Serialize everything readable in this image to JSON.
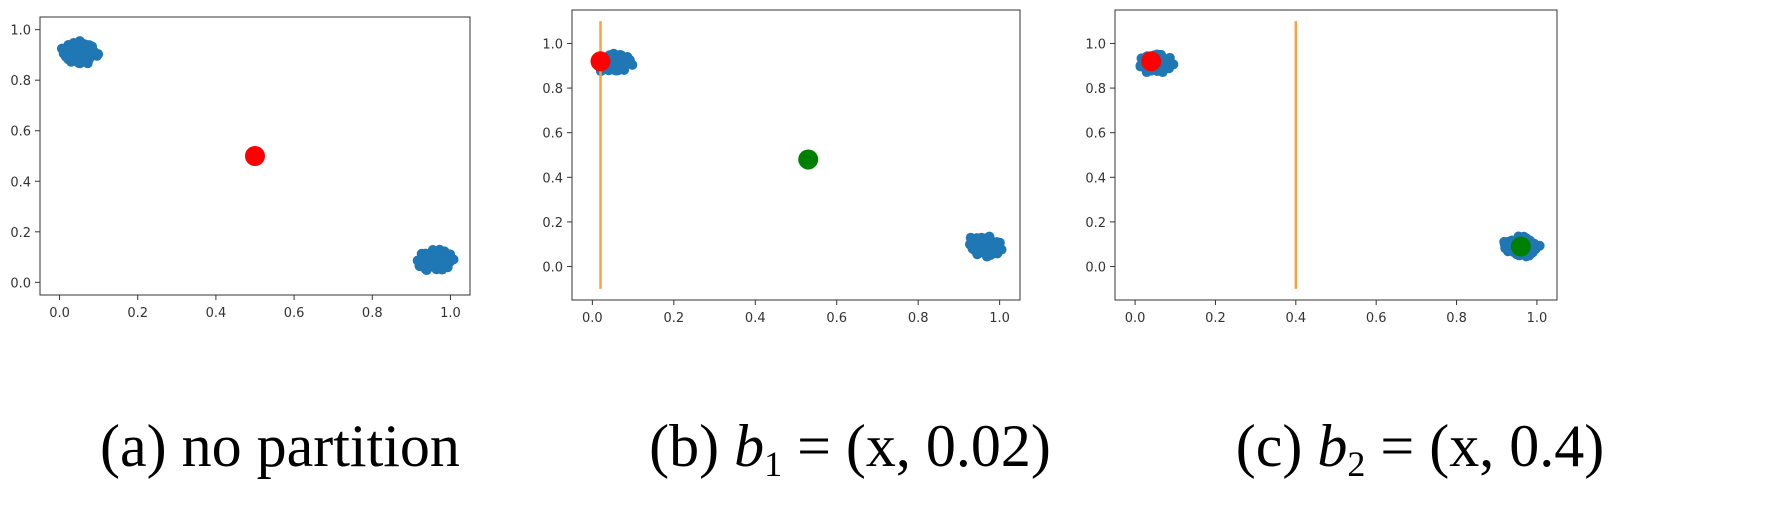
{
  "chart_data": [
    {
      "type": "scatter",
      "panel": "a",
      "xlim": [
        -0.05,
        1.05
      ],
      "ylim": [
        -0.05,
        1.05
      ],
      "xticks": [
        "0.0",
        "0.2",
        "0.4",
        "0.6",
        "0.8",
        "1.0"
      ],
      "yticks": [
        "0.0",
        "0.2",
        "0.4",
        "0.6",
        "0.8",
        "1.0"
      ],
      "grid": false,
      "clusters": [
        {
          "center": [
            0.05,
            0.91
          ],
          "spread": 0.045,
          "color": "#1f77b4"
        },
        {
          "center": [
            0.96,
            0.09
          ],
          "spread": 0.045,
          "color": "#1f77b4"
        }
      ],
      "highlight_points": [
        {
          "x": 0.5,
          "y": 0.5,
          "color": "#ff0000"
        }
      ],
      "vertical_line": null
    },
    {
      "type": "scatter",
      "panel": "b",
      "xlim": [
        -0.05,
        1.05
      ],
      "ylim": [
        -0.15,
        1.15
      ],
      "xticks": [
        "0.0",
        "0.2",
        "0.4",
        "0.6",
        "0.8",
        "1.0"
      ],
      "yticks": [
        "0.0",
        "0.2",
        "0.4",
        "0.6",
        "0.8",
        "1.0"
      ],
      "grid": false,
      "clusters": [
        {
          "center": [
            0.05,
            0.91
          ],
          "spread": 0.045,
          "color": "#1f77b4"
        },
        {
          "center": [
            0.96,
            0.09
          ],
          "spread": 0.045,
          "color": "#1f77b4"
        }
      ],
      "highlight_points": [
        {
          "x": 0.02,
          "y": 0.92,
          "color": "#ff0000"
        },
        {
          "x": 0.53,
          "y": 0.48,
          "color": "#008000"
        }
      ],
      "vertical_line": {
        "x": 0.02,
        "y0": -0.1,
        "y1": 1.1,
        "color": "#ffa040"
      }
    },
    {
      "type": "scatter",
      "panel": "c",
      "xlim": [
        -0.05,
        1.05
      ],
      "ylim": [
        -0.15,
        1.15
      ],
      "xticks": [
        "0.0",
        "0.2",
        "0.4",
        "0.6",
        "0.8",
        "1.0"
      ],
      "yticks": [
        "0.0",
        "0.2",
        "0.4",
        "0.6",
        "0.8",
        "1.0"
      ],
      "grid": false,
      "clusters": [
        {
          "center": [
            0.05,
            0.91
          ],
          "spread": 0.045,
          "color": "#1f77b4"
        },
        {
          "center": [
            0.96,
            0.09
          ],
          "spread": 0.045,
          "color": "#1f77b4"
        }
      ],
      "highlight_points": [
        {
          "x": 0.04,
          "y": 0.92,
          "color": "#ff0000"
        },
        {
          "x": 0.96,
          "y": 0.09,
          "color": "#008000"
        }
      ],
      "vertical_line": {
        "x": 0.4,
        "y0": -0.1,
        "y1": 1.1,
        "color": "#ffa040"
      }
    }
  ],
  "captions": [
    {
      "prefix": "(a) no partition",
      "var": "",
      "sub": "",
      "suffix": ""
    },
    {
      "prefix": "(b) ",
      "var": "b",
      "sub": "1",
      "suffix": " = (x, 0.02)"
    },
    {
      "prefix": "(c) ",
      "var": "b",
      "sub": "2",
      "suffix": " = (x, 0.4)"
    }
  ]
}
